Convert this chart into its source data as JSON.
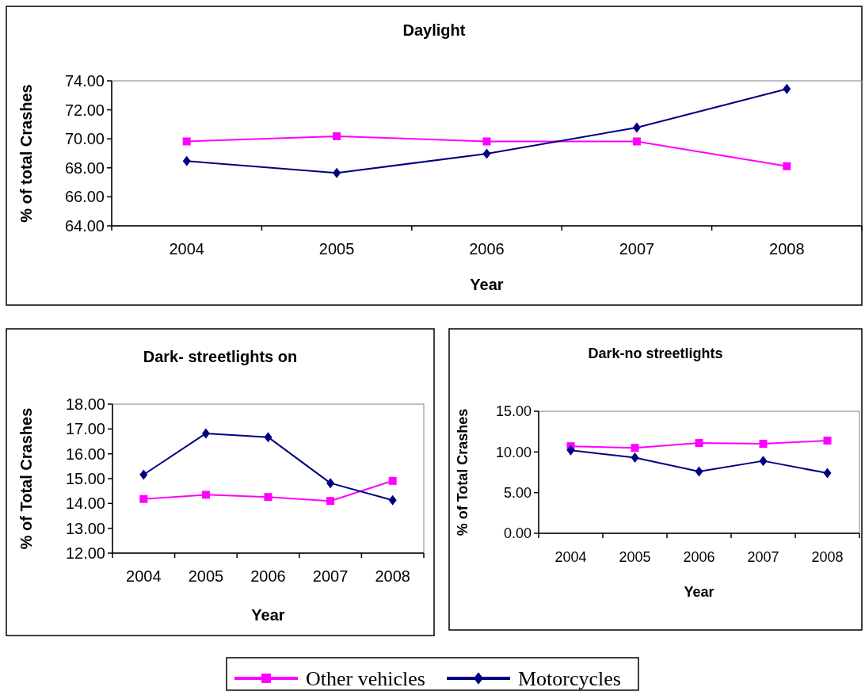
{
  "chart_data": [
    {
      "type": "line",
      "title": "Daylight",
      "xlabel": "Year",
      "ylabel": "% of total Crashes",
      "categories": [
        "2004",
        "2005",
        "2006",
        "2007",
        "2008"
      ],
      "ylim": [
        64,
        74
      ],
      "yticks": [
        {
          "value": 64,
          "label": "64.00"
        },
        {
          "value": 66,
          "label": "66.00"
        },
        {
          "value": 68,
          "label": "68.00"
        },
        {
          "value": 70,
          "label": "70.00"
        },
        {
          "value": 72,
          "label": "72.00"
        },
        {
          "value": 74,
          "label": "74.00"
        }
      ],
      "legend": "bottom",
      "series": [
        {
          "name": "Other vehicles",
          "color": "#ff00ff",
          "marker": "square",
          "values": [
            69.82,
            70.18,
            69.82,
            69.82,
            68.11
          ]
        },
        {
          "name": "Motorcycles",
          "color": "#000080",
          "marker": "diamond",
          "values": [
            68.47,
            67.65,
            68.97,
            70.78,
            73.44
          ]
        }
      ]
    },
    {
      "type": "line",
      "title": "Dark- streetlights on",
      "xlabel": "Year",
      "ylabel": "% of Total Crashes",
      "categories": [
        "2004",
        "2005",
        "2006",
        "2007",
        "2008"
      ],
      "ylim": [
        12,
        18
      ],
      "yticks": [
        {
          "value": 12,
          "label": "12.00"
        },
        {
          "value": 13,
          "label": "13.00"
        },
        {
          "value": 14,
          "label": "14.00"
        },
        {
          "value": 15,
          "label": "15.00"
        },
        {
          "value": 16,
          "label": "16.00"
        },
        {
          "value": 17,
          "label": "17.00"
        },
        {
          "value": 18,
          "label": "18.00"
        }
      ],
      "series": [
        {
          "color": "#ff00ff",
          "marker": "square",
          "values": [
            14.18,
            14.35,
            14.26,
            14.1,
            14.91
          ]
        },
        {
          "color": "#000080",
          "marker": "diamond",
          "values": [
            15.16,
            16.82,
            16.67,
            14.82,
            14.13
          ]
        }
      ]
    },
    {
      "type": "line",
      "title": "Dark-no streetlights",
      "xlabel": "Year",
      "ylabel": "% of Total Crashes",
      "categories": [
        "2004",
        "2005",
        "2006",
        "2007",
        "2008"
      ],
      "ylim": [
        0,
        15
      ],
      "yticks": [
        {
          "value": 0,
          "label": "0.00"
        },
        {
          "value": 5,
          "label": "5.00"
        },
        {
          "value": 10,
          "label": "10.00"
        },
        {
          "value": 15,
          "label": "15.00"
        }
      ],
      "series": [
        {
          "color": "#ff00ff",
          "marker": "square",
          "values": [
            10.7,
            10.5,
            11.1,
            11.0,
            11.4
          ]
        },
        {
          "color": "#000080",
          "marker": "diamond",
          "values": [
            10.2,
            9.3,
            7.6,
            8.9,
            7.4
          ]
        }
      ]
    }
  ]
}
